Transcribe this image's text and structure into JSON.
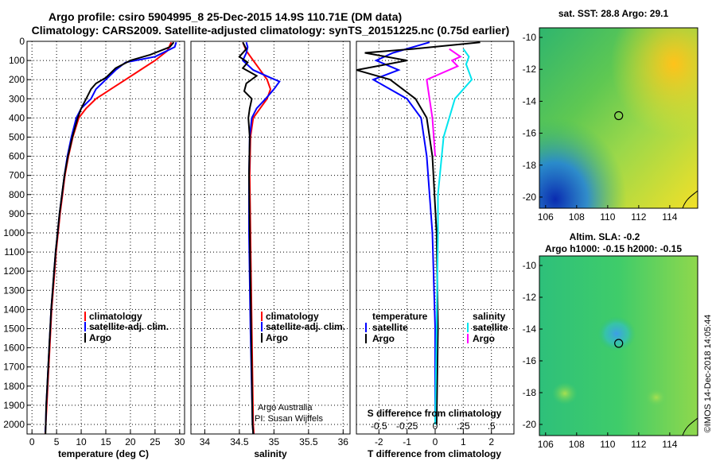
{
  "title_line1": "Argo profile: csiro 5904995_8 25-Dec-2015 14.9S 110.71E (DM data)",
  "title_line2": "Climatology: CARS2009. Satellite-adjusted climatology: synTS_20151225.nc (0.75d earlier)",
  "credit": "©IMOS 14-Dec-2018 14:05:44",
  "colors": {
    "climatology": "#ff0000",
    "satellite": "#0000ff",
    "argo": "#000000",
    "sal_satellite": "#00e5ee",
    "sal_argo": "#ff00ff"
  },
  "chart_data": [
    {
      "type": "line",
      "name": "temperature",
      "xlabel": "temperature (deg C)",
      "ylabel": "",
      "xlim": [
        -1,
        31
      ],
      "ylim": [
        2050,
        0
      ],
      "xticks": [
        0,
        5,
        10,
        15,
        20,
        25,
        30
      ],
      "yticks": [
        0,
        100,
        200,
        300,
        400,
        500,
        600,
        700,
        800,
        900,
        1000,
        1100,
        1200,
        1300,
        1400,
        1500,
        1600,
        1700,
        1800,
        1900,
        2000
      ],
      "legend": {
        "position": "lower-right",
        "labels": [
          "climatology",
          "satellite-adj. clim.",
          "Argo"
        ]
      },
      "series": [
        {
          "name": "climatology",
          "color": "#ff0000",
          "points": [
            [
              28.3,
              5
            ],
            [
              27.5,
              50
            ],
            [
              25,
              100
            ],
            [
              22,
              150
            ],
            [
              19,
              200
            ],
            [
              16,
              250
            ],
            [
              13,
              300
            ],
            [
              11,
              350
            ],
            [
              9.5,
              400
            ],
            [
              8.3,
              500
            ],
            [
              7.4,
              600
            ],
            [
              6.7,
              700
            ],
            [
              6.2,
              800
            ],
            [
              5.7,
              900
            ],
            [
              5.3,
              1000
            ],
            [
              4.9,
              1100
            ],
            [
              4.6,
              1200
            ],
            [
              4.3,
              1300
            ],
            [
              4.0,
              1400
            ],
            [
              3.8,
              1500
            ],
            [
              3.6,
              1600
            ],
            [
              3.4,
              1700
            ],
            [
              3.2,
              1800
            ],
            [
              3.0,
              1900
            ],
            [
              2.8,
              2000
            ],
            [
              2.7,
              2050
            ]
          ]
        },
        {
          "name": "satellite-adj. clim.",
          "color": "#0000ff",
          "points": [
            [
              29.3,
              5
            ],
            [
              29,
              30
            ],
            [
              25,
              80
            ],
            [
              19,
              110
            ],
            [
              17,
              150
            ],
            [
              15,
              200
            ],
            [
              13,
              250
            ],
            [
              12,
              300
            ],
            [
              10,
              350
            ],
            [
              9,
              400
            ],
            [
              8,
              500
            ],
            [
              7.2,
              600
            ],
            [
              6.6,
              700
            ],
            [
              6.1,
              800
            ],
            [
              5.6,
              900
            ],
            [
              5.2,
              1000
            ],
            [
              4.8,
              1100
            ],
            [
              4.5,
              1200
            ],
            [
              4.2,
              1300
            ],
            [
              3.9,
              1400
            ],
            [
              3.7,
              1500
            ],
            [
              3.5,
              1600
            ],
            [
              3.3,
              1700
            ],
            [
              3.1,
              1800
            ],
            [
              2.9,
              1900
            ],
            [
              2.8,
              2000
            ],
            [
              2.7,
              2040
            ]
          ]
        },
        {
          "name": "Argo",
          "color": "#000000",
          "points": [
            [
              28.8,
              5
            ],
            [
              28,
              30
            ],
            [
              24,
              70
            ],
            [
              20,
              100
            ],
            [
              17,
              140
            ],
            [
              15,
              190
            ],
            [
              13,
              220
            ],
            [
              12,
              250
            ],
            [
              11,
              300
            ],
            [
              10,
              350
            ],
            [
              9.3,
              400
            ],
            [
              8.2,
              500
            ],
            [
              7.3,
              600
            ],
            [
              6.6,
              700
            ],
            [
              6.1,
              800
            ],
            [
              5.6,
              900
            ],
            [
              5.2,
              1000
            ],
            [
              4.8,
              1100
            ],
            [
              4.5,
              1200
            ],
            [
              4.2,
              1300
            ],
            [
              3.9,
              1400
            ],
            [
              3.7,
              1500
            ],
            [
              3.5,
              1600
            ],
            [
              3.3,
              1700
            ],
            [
              3.1,
              1800
            ],
            [
              2.9,
              1900
            ],
            [
              2.8,
              2000
            ],
            [
              2.75,
              2050
            ]
          ]
        }
      ]
    },
    {
      "type": "line",
      "name": "salinity",
      "xlabel": "salinity",
      "xlim": [
        33.8,
        36.1
      ],
      "ylim": [
        2050,
        0
      ],
      "xticks": [
        34,
        34.5,
        35,
        35.5,
        36
      ],
      "legend": {
        "position": "lower-right",
        "labels": [
          "climatology",
          "satellite-adj. clim.",
          "Argo"
        ]
      },
      "annotation_lines": [
        "Argo Australia",
        "PI: Susan Wijffels"
      ],
      "series": [
        {
          "name": "climatology",
          "color": "#ff0000",
          "points": [
            [
              34.55,
              5
            ],
            [
              34.6,
              50
            ],
            [
              34.7,
              100
            ],
            [
              34.8,
              150
            ],
            [
              34.9,
              200
            ],
            [
              34.95,
              250
            ],
            [
              34.9,
              300
            ],
            [
              34.8,
              350
            ],
            [
              34.7,
              400
            ],
            [
              34.66,
              500
            ],
            [
              34.65,
              700
            ],
            [
              34.66,
              1000
            ],
            [
              34.68,
              1500
            ],
            [
              34.7,
              2000
            ],
            [
              34.71,
              2050
            ]
          ]
        },
        {
          "name": "satellite-adj. clim.",
          "color": "#0000ff",
          "points": [
            [
              34.6,
              5
            ],
            [
              34.62,
              30
            ],
            [
              34.6,
              60
            ],
            [
              34.55,
              100
            ],
            [
              34.7,
              150
            ],
            [
              34.95,
              190
            ],
            [
              35.08,
              210
            ],
            [
              35.0,
              250
            ],
            [
              34.88,
              300
            ],
            [
              34.75,
              350
            ],
            [
              34.68,
              400
            ],
            [
              34.65,
              500
            ],
            [
              34.64,
              700
            ],
            [
              34.64,
              1000
            ],
            [
              34.66,
              1500
            ],
            [
              34.69,
              2000
            ],
            [
              34.7,
              2050
            ]
          ]
        },
        {
          "name": "Argo",
          "color": "#000000",
          "points": [
            [
              34.55,
              5
            ],
            [
              34.6,
              40
            ],
            [
              34.5,
              80
            ],
            [
              34.62,
              110
            ],
            [
              34.55,
              140
            ],
            [
              34.75,
              180
            ],
            [
              34.6,
              220
            ],
            [
              34.57,
              260
            ],
            [
              34.68,
              300
            ],
            [
              34.65,
              350
            ],
            [
              34.63,
              400
            ],
            [
              34.65,
              500
            ],
            [
              34.64,
              700
            ],
            [
              34.65,
              1000
            ],
            [
              34.67,
              1500
            ],
            [
              34.69,
              2000
            ],
            [
              34.7,
              2050
            ]
          ]
        }
      ]
    },
    {
      "type": "line",
      "name": "T difference",
      "xlabel": "T difference from climatology",
      "secondary_xlabel": "S difference from climatology",
      "xlim": [
        -2.8,
        2.8
      ],
      "ylim": [
        2050,
        0
      ],
      "xticks": [
        -2,
        -1,
        0,
        1,
        2
      ],
      "secondary_xticks": [
        -0.5,
        -0.25,
        0,
        0.25,
        0.5
      ],
      "legend": {
        "position": "lower",
        "headers": [
          "temperature",
          "salinity"
        ],
        "labels": [
          "satellite",
          "Argo",
          "satellite",
          "Argo"
        ]
      },
      "series": [
        {
          "name": "temperature satellite",
          "color": "#0000ff",
          "points": [
            [
              -0.2,
              5
            ],
            [
              -1.5,
              60
            ],
            [
              -2.1,
              100
            ],
            [
              -1.3,
              150
            ],
            [
              -2.2,
              200
            ],
            [
              -1,
              300
            ],
            [
              -0.5,
              400
            ],
            [
              -0.3,
              600
            ],
            [
              -0.1,
              1000
            ],
            [
              0,
              1500
            ],
            [
              0,
              2000
            ]
          ]
        },
        {
          "name": "temperature Argo",
          "color": "#000000",
          "points": [
            [
              1.6,
              5
            ],
            [
              -0.8,
              40
            ],
            [
              -2.5,
              60
            ],
            [
              -1,
              100
            ],
            [
              -2.8,
              150
            ],
            [
              -1.6,
              200
            ],
            [
              -0.7,
              300
            ],
            [
              -0.3,
              400
            ],
            [
              -0.1,
              600
            ],
            [
              0.05,
              1000
            ],
            [
              0.1,
              1500
            ],
            [
              0.05,
              2000
            ]
          ]
        },
        {
          "name": "salinity satellite",
          "color": "#00e5ee",
          "points": [
            [
              1.0,
              40
            ],
            [
              1.2,
              80
            ],
            [
              1.1,
              120
            ],
            [
              1.3,
              200
            ],
            [
              0.7,
              300
            ],
            [
              0.3,
              500
            ],
            [
              0.1,
              800
            ],
            [
              0.1,
              1000
            ],
            [
              0.05,
              1500
            ],
            [
              0.0,
              2000
            ]
          ]
        },
        {
          "name": "salinity Argo",
          "color": "#ff00ff",
          "points": [
            [
              0.5,
              40
            ],
            [
              0.9,
              80
            ],
            [
              0.6,
              100
            ],
            [
              0.8,
              130
            ],
            [
              -0.3,
              200
            ],
            [
              -0.2,
              300
            ],
            [
              -0.1,
              400
            ],
            [
              0,
              600
            ]
          ]
        }
      ]
    },
    {
      "type": "heatmap",
      "name": "sst map",
      "title": "sat. SST: 28.8 Argo: 29.1",
      "xlim": [
        105.6,
        115.8
      ],
      "ylim": [
        -20.7,
        -9.4
      ],
      "xticks": [
        106,
        108,
        110,
        112,
        114
      ],
      "yticks": [
        -10,
        -12,
        -14,
        -16,
        -18,
        -20
      ],
      "marker": {
        "lon": 110.71,
        "lat": -14.9
      }
    },
    {
      "type": "heatmap",
      "name": "sla map",
      "title_lines": [
        "Altim. SLA: -0.2",
        "Argo h1000: -0.15 h2000: -0.15"
      ],
      "xlim": [
        105.6,
        115.8
      ],
      "ylim": [
        -20.7,
        -9.4
      ],
      "xticks": [
        106,
        108,
        110,
        112,
        114
      ],
      "yticks": [
        -10,
        -12,
        -14,
        -16,
        -18,
        -20
      ],
      "marker": {
        "lon": 110.71,
        "lat": -14.9
      }
    }
  ]
}
